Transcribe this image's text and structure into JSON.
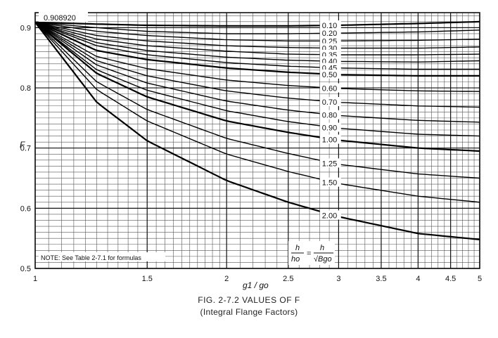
{
  "chart_data": {
    "type": "line",
    "title": "FIG. 2-7.2 VALUES OF F",
    "subtitle": "(Integral Flange Factors)",
    "xlabel": "g1 / go",
    "ylabel": "F",
    "xscale": "log",
    "xlim": [
      1,
      5
    ],
    "ylim": [
      0.5,
      0.925
    ],
    "xticks": [
      1,
      1.5,
      2,
      2.5,
      3,
      3.5,
      4,
      4.5,
      5
    ],
    "xtick_labels": [
      "1",
      "1.5",
      "2",
      "2.5",
      "3",
      "3.5",
      "4",
      "4.5",
      "5"
    ],
    "yticks": [
      0.5,
      0.6,
      0.7,
      0.8,
      0.9
    ],
    "ytick_labels": [
      "0.5",
      "0.6",
      "0.7",
      "0.8",
      "0.9"
    ],
    "grid": true,
    "origin_label": "0.908920",
    "note": "NOTE: See Table 2-7.1 for formulas",
    "formula": {
      "lhs_num": "h",
      "lhs_den": "ho",
      "rhs_num": "h",
      "rhs_den": "√Bgo"
    },
    "x": [
      1,
      1.25,
      1.5,
      2,
      2.5,
      3,
      4,
      5
    ],
    "series": [
      {
        "name": "0.10",
        "values": [
          0.909,
          0.906,
          0.904,
          0.903,
          0.903,
          0.904,
          0.907,
          0.91
        ]
      },
      {
        "name": "0.20",
        "values": [
          0.909,
          0.9,
          0.894,
          0.89,
          0.89,
          0.891,
          0.893,
          0.896
        ]
      },
      {
        "name": "0.25",
        "values": [
          0.909,
          0.894,
          0.887,
          0.88,
          0.878,
          0.878,
          0.879,
          0.881
        ]
      },
      {
        "name": "0.30",
        "values": [
          0.909,
          0.887,
          0.878,
          0.87,
          0.867,
          0.866,
          0.866,
          0.868
        ]
      },
      {
        "name": "0.35",
        "values": [
          0.909,
          0.881,
          0.87,
          0.861,
          0.856,
          0.855,
          0.855,
          0.856
        ]
      },
      {
        "name": "0.40",
        "values": [
          0.909,
          0.875,
          0.862,
          0.851,
          0.846,
          0.844,
          0.843,
          0.845
        ]
      },
      {
        "name": "0.45",
        "values": [
          0.909,
          0.87,
          0.855,
          0.842,
          0.836,
          0.833,
          0.831,
          0.831
        ]
      },
      {
        "name": "0.50",
        "values": [
          0.909,
          0.862,
          0.847,
          0.833,
          0.826,
          0.822,
          0.82,
          0.82
        ]
      },
      {
        "name": "0.60",
        "values": [
          0.909,
          0.852,
          0.832,
          0.813,
          0.804,
          0.799,
          0.795,
          0.794
        ]
      },
      {
        "name": "0.70",
        "values": [
          0.909,
          0.845,
          0.82,
          0.795,
          0.783,
          0.776,
          0.77,
          0.768
        ]
      },
      {
        "name": "0.80",
        "values": [
          0.909,
          0.838,
          0.808,
          0.778,
          0.763,
          0.754,
          0.746,
          0.743
        ]
      },
      {
        "name": "0.90",
        "values": [
          0.909,
          0.83,
          0.796,
          0.762,
          0.744,
          0.733,
          0.723,
          0.72
        ]
      },
      {
        "name": "1.00",
        "values": [
          0.909,
          0.824,
          0.785,
          0.745,
          0.726,
          0.713,
          0.7,
          0.695
        ]
      },
      {
        "name": "1.25",
        "values": [
          0.909,
          0.81,
          0.764,
          0.716,
          0.691,
          0.673,
          0.657,
          0.65
        ]
      },
      {
        "name": "1.50",
        "values": [
          0.909,
          0.797,
          0.745,
          0.69,
          0.661,
          0.641,
          0.62,
          0.61
        ]
      },
      {
        "name": "2.00",
        "values": [
          0.909,
          0.776,
          0.712,
          0.646,
          0.61,
          0.586,
          0.558,
          0.548
        ]
      }
    ]
  }
}
